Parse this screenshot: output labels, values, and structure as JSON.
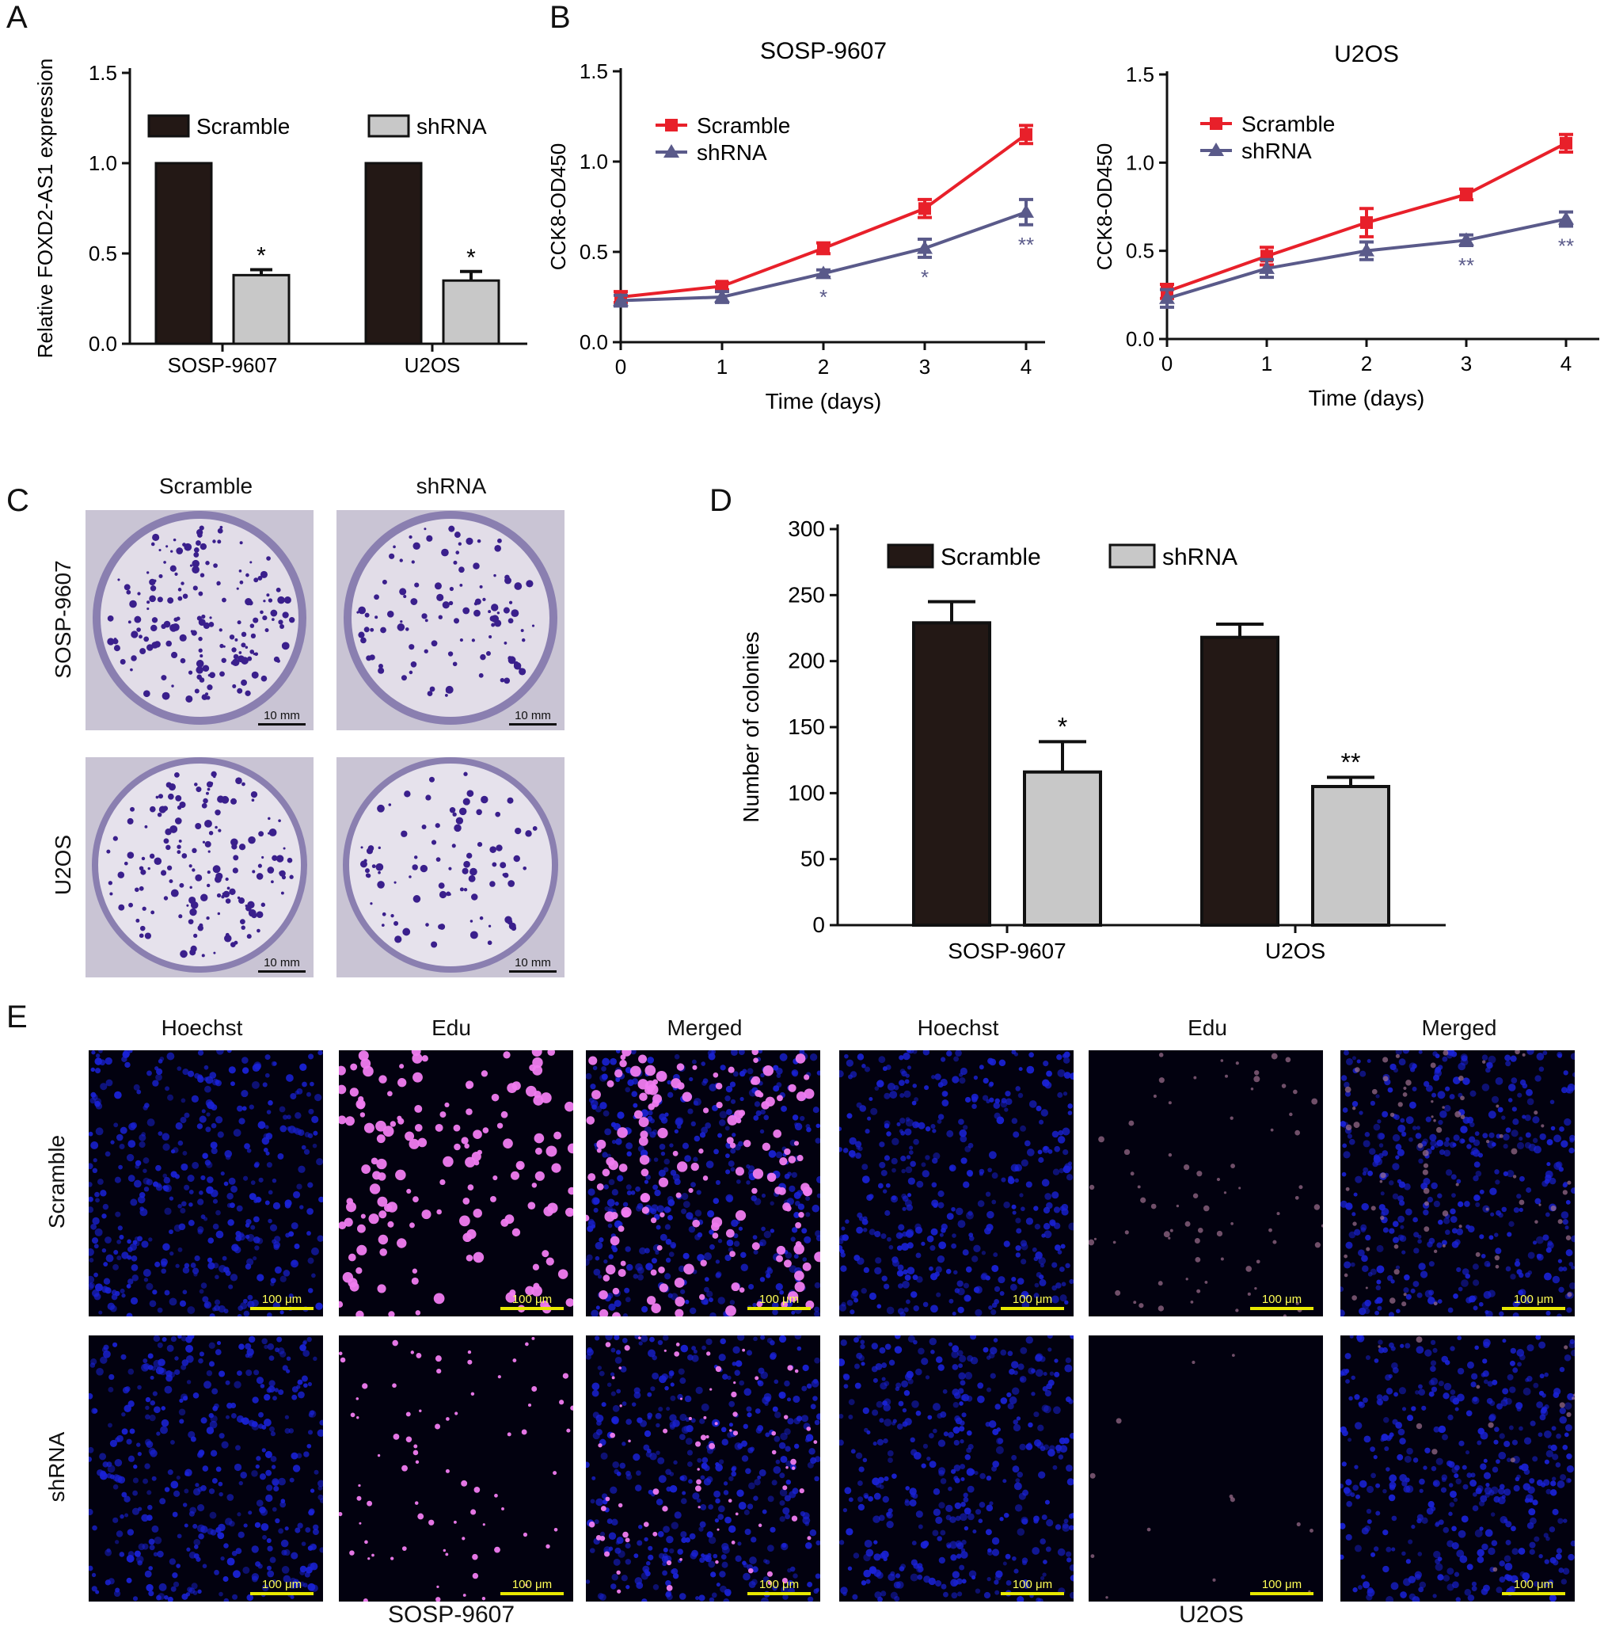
{
  "panels": {
    "a": "A",
    "b": "B",
    "c": "C",
    "d": "D",
    "e": "E"
  },
  "colors": {
    "scramble_bar": "#231815",
    "shrna_bar": "#c8c8c8",
    "scramble_line": "#e8202a",
    "shrna_line": "#5a5a8a"
  },
  "legend": {
    "scramble": "Scramble",
    "shrna": "shRNA"
  },
  "chart_data": [
    {
      "id": "A",
      "type": "bar",
      "categories": [
        "SOSP-9607",
        "U2OS"
      ],
      "series": [
        {
          "name": "Scramble",
          "values": [
            1.0,
            1.0
          ],
          "errors": [
            0,
            0
          ]
        },
        {
          "name": "shRNA",
          "values": [
            0.38,
            0.35
          ],
          "errors": [
            0.03,
            0.05
          ]
        }
      ],
      "annotations": [
        {
          "series": "shRNA",
          "category": "SOSP-9607",
          "text": "*"
        },
        {
          "series": "shRNA",
          "category": "U2OS",
          "text": "*"
        }
      ],
      "xlabel": "",
      "ylabel": "Relative FOXD2-AS1 expression",
      "ylim": [
        0,
        1.5
      ],
      "yticks": [
        "0.0",
        "0.5",
        "1.0",
        "1.5"
      ],
      "legend_position": "top"
    },
    {
      "id": "B1",
      "type": "line",
      "title": "SOSP-9607",
      "x": [
        0,
        1,
        2,
        3,
        4
      ],
      "xticks": [
        "0",
        "1",
        "2",
        "3",
        "4"
      ],
      "series": [
        {
          "name": "Scramble",
          "values": [
            0.25,
            0.31,
            0.52,
            0.74,
            1.15
          ],
          "errors": [
            0.03,
            0.02,
            0.03,
            0.05,
            0.05
          ]
        },
        {
          "name": "shRNA",
          "values": [
            0.23,
            0.25,
            0.38,
            0.52,
            0.72
          ],
          "errors": [
            0.03,
            0.03,
            0.02,
            0.05,
            0.07
          ]
        }
      ],
      "annotations": [
        {
          "x": 2,
          "text": "*"
        },
        {
          "x": 3,
          "text": "*"
        },
        {
          "x": 4,
          "text": "**"
        }
      ],
      "xlabel": "Time (days)",
      "ylabel": "CCK8-OD450",
      "ylim": [
        0,
        1.5
      ],
      "yticks": [
        "0.0",
        "0.5",
        "1.0",
        "1.5"
      ],
      "legend_position": "top-left"
    },
    {
      "id": "B2",
      "type": "line",
      "title": "U2OS",
      "x": [
        0,
        1,
        2,
        3,
        4
      ],
      "xticks": [
        "0",
        "1",
        "2",
        "3",
        "4"
      ],
      "series": [
        {
          "name": "Scramble",
          "values": [
            0.27,
            0.47,
            0.66,
            0.82,
            1.11
          ],
          "errors": [
            0.04,
            0.05,
            0.08,
            0.03,
            0.05
          ]
        },
        {
          "name": "shRNA",
          "values": [
            0.23,
            0.4,
            0.5,
            0.56,
            0.68
          ],
          "errors": [
            0.05,
            0.05,
            0.05,
            0.03,
            0.04
          ]
        }
      ],
      "annotations": [
        {
          "x": 3,
          "text": "**"
        },
        {
          "x": 4,
          "text": "**"
        }
      ],
      "xlabel": "Time (days)",
      "ylabel": "CCK8-OD450",
      "ylim": [
        0,
        1.5
      ],
      "yticks": [
        "0.0",
        "0.5",
        "1.0",
        "1.5"
      ],
      "legend_position": "top-left"
    },
    {
      "id": "D",
      "type": "bar",
      "categories": [
        "SOSP-9607",
        "U2OS"
      ],
      "series": [
        {
          "name": "Scramble",
          "values": [
            229,
            218
          ],
          "errors": [
            16,
            10
          ]
        },
        {
          "name": "shRNA",
          "values": [
            116,
            105
          ],
          "errors": [
            23,
            7
          ]
        }
      ],
      "annotations": [
        {
          "series": "shRNA",
          "category": "SOSP-9607",
          "text": "*"
        },
        {
          "series": "shRNA",
          "category": "U2OS",
          "text": "**"
        }
      ],
      "xlabel": "",
      "ylabel": "Number of colonies",
      "ylim": [
        0,
        300
      ],
      "yticks": [
        "0",
        "50",
        "100",
        "150",
        "200",
        "250",
        "300"
      ],
      "legend_position": "top"
    }
  ],
  "panel_c": {
    "col_headers": [
      "Scramble",
      "shRNA"
    ],
    "row_headers": [
      "SOSP-9607",
      "U2OS"
    ],
    "scale_bar": "10 mm"
  },
  "panel_e": {
    "col_headers": [
      "Hoechst",
      "Edu",
      "Merged",
      "Hoechst",
      "Edu",
      "Merged"
    ],
    "row_headers": [
      "Scramble",
      "shRNA"
    ],
    "scale_bar": "100 μm",
    "group_labels": [
      "SOSP-9607",
      "U2OS"
    ]
  }
}
